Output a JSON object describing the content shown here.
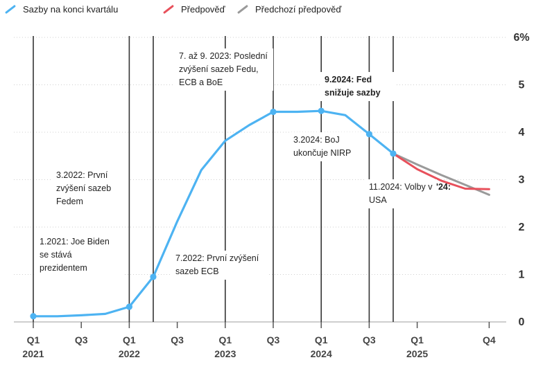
{
  "legend": {
    "actual": "Sazby na konci kvartálu",
    "forecast": "Předpověď",
    "previous_forecast": "Předchozí předpověď"
  },
  "colors": {
    "actual": "#4db3f2",
    "forecast": "#e8505b",
    "previous_forecast": "#9a9a9a",
    "vline": "#333333",
    "grid": "#cfcfcf"
  },
  "annotations": {
    "a1": "1.2021: Joe Biden se stává prezidentem",
    "a2": "3.2022: První zvýšení sazeb Fedem",
    "a3": "7.2022: První zvýšení sazeb ECB",
    "a4": "7. až 9. 2023: Poslední zvýšení sazeb Fedu, ECB a BoE",
    "a5": "9.2024: Fed snižuje sazby",
    "a6": "3.2024: BoJ ukončuje NIRP",
    "a7": "11.2024: Volby v USA",
    "a7_fragment": "'24:"
  },
  "chart_data": {
    "type": "line",
    "ylim": [
      0,
      6
    ],
    "yticks": [
      "0",
      "1",
      "2",
      "3",
      "4",
      "5",
      "6%"
    ],
    "x_tick_labels": [
      "Q1",
      "Q3",
      "Q1",
      "Q3",
      "Q1",
      "Q3",
      "Q1",
      "Q3",
      "Q1",
      "Q4"
    ],
    "x_tick_q": [
      0,
      2,
      4,
      6,
      8,
      10,
      12,
      14,
      16,
      19
    ],
    "year_labels": [
      "2021",
      "2022",
      "2023",
      "2024",
      "2025"
    ],
    "year_q": [
      0,
      4,
      8,
      12,
      16
    ],
    "event_lines_q": [
      0,
      4,
      5,
      8,
      10,
      12,
      14,
      15
    ],
    "series": [
      {
        "name": "Sazby na konci kvartálu",
        "x_q": [
          0,
          1,
          2,
          3,
          4,
          5,
          6,
          7,
          8,
          9,
          10,
          11,
          12,
          13,
          14,
          15
        ],
        "values": [
          0.12,
          0.12,
          0.14,
          0.17,
          0.32,
          0.95,
          2.12,
          3.2,
          3.82,
          4.15,
          4.43,
          4.43,
          4.45,
          4.36,
          3.96,
          3.55
        ],
        "markers_q": [
          0,
          4,
          5,
          10,
          12,
          14,
          15
        ]
      },
      {
        "name": "Předpověď",
        "x_q": [
          15,
          16,
          17,
          18,
          19
        ],
        "values": [
          3.55,
          3.22,
          2.98,
          2.81,
          2.8
        ]
      },
      {
        "name": "Předchozí předpověď",
        "x_q": [
          15,
          16,
          17,
          18,
          19
        ],
        "values": [
          3.55,
          3.32,
          3.1,
          2.89,
          2.68
        ]
      }
    ]
  }
}
